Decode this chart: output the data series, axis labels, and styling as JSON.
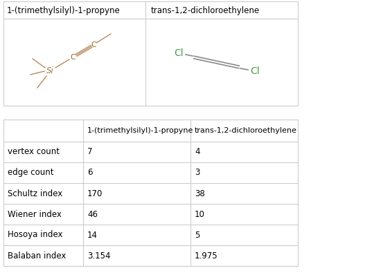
{
  "col1_header": "1-(trimethylsilyl)-1-propyne",
  "col2_header": "trans-1,2-dichloroethylene",
  "row_labels": [
    "vertex count",
    "edge count",
    "Schultz index",
    "Wiener index",
    "Hosoya index",
    "Balaban index"
  ],
  "col1_values": [
    "7",
    "6",
    "170",
    "46",
    "14",
    "3.154"
  ],
  "col2_values": [
    "4",
    "3",
    "38",
    "10",
    "5",
    "1.975"
  ],
  "bg_color": "#ffffff",
  "text_color": "#000000",
  "border_color": "#cccccc",
  "mol1_color": "#b8895a",
  "mol1_text_color": "#8b6914",
  "mol2_line_color": "#888888",
  "green_color": "#4a9e4a",
  "si_color": "#a07840",
  "c_color": "#8b6914"
}
